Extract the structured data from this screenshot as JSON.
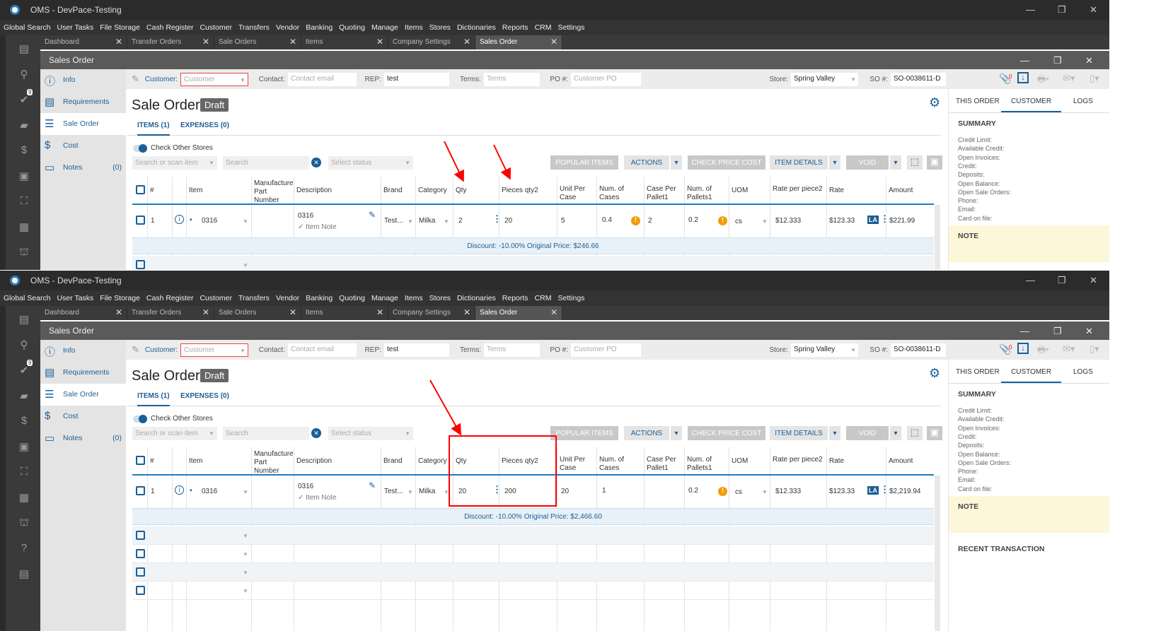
{
  "app": {
    "title": "OMS - DevPace-Testing",
    "menu": [
      "Global Search",
      "User Tasks",
      "File Storage",
      "Cash Register",
      "Customer",
      "Transfers",
      "Vendor",
      "Banking",
      "Quoting",
      "Manage",
      "Items",
      "Stores",
      "Dictionaries",
      "Reports",
      "CRM",
      "Settings"
    ],
    "tabs": [
      "Dashboard",
      "Transfer Orders",
      "Sale Orders",
      "Items",
      "Company Settings",
      "Sales Order"
    ],
    "active_tab": "Sales Order",
    "tasks_badge": "9",
    "window_title": "Sales Order",
    "nav": [
      {
        "label": "Info",
        "icon": "info-icon"
      },
      {
        "label": "Requirements",
        "icon": "clipboard-icon"
      },
      {
        "label": "Sale Order",
        "icon": "list-icon"
      },
      {
        "label": "Cost",
        "icon": "dollar-icon"
      },
      {
        "label": "Notes",
        "icon": "notes-icon",
        "count": "(0)"
      }
    ],
    "form": {
      "customer_label": "Customer:",
      "customer_placeholder": "Customer",
      "contact_label": "Contact:",
      "contact_placeholder": "Contact email",
      "rep_label": "REP:",
      "rep_value": "test",
      "terms_label": "Terms:",
      "terms_placeholder": "Terms",
      "po_label": "PO #:",
      "po_placeholder": "Customer PO",
      "store_label": "Store:",
      "store_value": "Spring Valley",
      "so_label": "SO #:",
      "so_value": "SO-0038611-D",
      "attachments_count": "0"
    },
    "heading": "Sale Order",
    "status": "Draft",
    "subtabs": [
      "ITEMS (1)",
      "EXPENSES (0)"
    ],
    "check_other_stores": "Check Other Stores",
    "filters": {
      "scan_placeholder": "Search or scan item",
      "search_placeholder": "Search",
      "status_placeholder": "Select status"
    },
    "buttons": {
      "popular": "POPULAR ITEMS",
      "actions": "ACTIONS",
      "check_price": "CHECK PRICE COST",
      "item_details": "ITEM DETAILS",
      "void": "VOID"
    },
    "columns": [
      "#",
      "Item",
      "Manufacture Part Number",
      "Description",
      "Brand",
      "Category",
      "Qty",
      "Pieces qty2",
      "Unit Per Case",
      "Num. of Cases",
      "Case Per Pallet1",
      "Num. of Pallets1",
      "UOM",
      "Rate per piece2",
      "Rate",
      "Amount"
    ],
    "right_tabs": [
      "THIS ORDER",
      "CUSTOMER",
      "LOGS"
    ],
    "summary_title": "SUMMARY",
    "summary_fields": [
      "Credit Limit:",
      "Available Credit:",
      "Open Invoices:",
      "Credit:",
      "Deposits:",
      "Open Balance:",
      "Open Sale Orders:",
      "Phone:",
      "Email:",
      "Card on file:"
    ],
    "note_title": "NOTE",
    "recent_title": "RECENT TRANSACTION",
    "accent": "#1a5e96",
    "annotation_color": "#ff0000"
  },
  "screens": [
    {
      "row": {
        "num": "1",
        "item": "0316",
        "description": "0316",
        "item_note": "Item Note",
        "brand": "Test...",
        "category": "Milka",
        "qty": "2",
        "pieces": "20",
        "unit_per_case": "5",
        "num_cases": "0.4",
        "case_per_pallet": "2",
        "num_pallets": "0.2",
        "uom": "cs",
        "rate_per_piece": "$12.333",
        "rate": "$123.33",
        "la": "LA",
        "amount": "$221.99"
      },
      "discount": "Discount: -10.00% Original Price: $246.66"
    },
    {
      "row": {
        "num": "1",
        "item": "0316",
        "description": "0316",
        "item_note": "Item Note",
        "brand": "Test...",
        "category": "Milka",
        "qty": "20",
        "pieces": "200",
        "unit_per_case": "20",
        "num_cases": "1",
        "case_per_pallet": "",
        "num_pallets": "0.2",
        "uom": "cs",
        "rate_per_piece": "$12.333",
        "rate": "$123.33",
        "la": "LA",
        "amount": "$2,219.94"
      },
      "discount": "Discount: -10.00% Original Price: $2,466.60"
    }
  ]
}
